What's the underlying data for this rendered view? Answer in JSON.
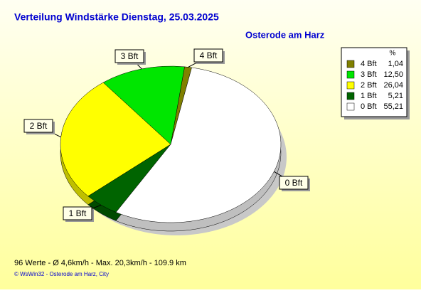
{
  "chart_data": {
    "type": "pie",
    "title": "Verteilung Windstärke  Dienstag, 25.03.2025",
    "subtitle": "Osterode am Harz",
    "categories": [
      "4 Bft",
      "3 Bft",
      "2 Bft",
      "1 Bft",
      "0 Bft"
    ],
    "values": [
      1.04,
      12.5,
      26.04,
      5.21,
      55.21
    ],
    "value_labels": [
      "1,04",
      "12,50",
      "26,04",
      "5,21",
      "55,21"
    ],
    "colors": [
      "#808000",
      "#00e600",
      "#ffff00",
      "#006400",
      "#ffffff"
    ],
    "legend_header": "%",
    "legend": "top-right",
    "summary": "96 Werte   -   Ø 4,6km/h  -  Max. 20,3km/h   -   109.9 km",
    "credit": "© WsWin32  -  Osterode am Harz, City"
  }
}
